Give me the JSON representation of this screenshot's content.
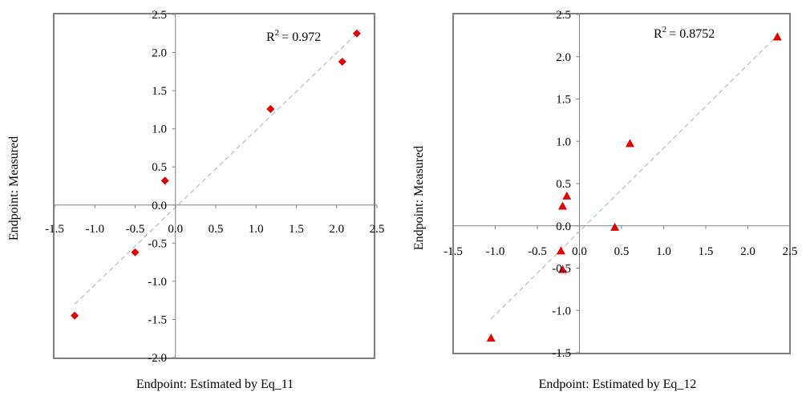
{
  "chart_data": [
    {
      "type": "scatter",
      "marker": "diamond",
      "color": "#e00000",
      "xlabel": "Endpoint: Estimated by Eq_11",
      "ylabel": "Endpoint: Measured",
      "xlim": [
        -1.5,
        2.5
      ],
      "ylim": [
        -2.0,
        2.5
      ],
      "xticks": [
        "-1.5",
        "-1.0",
        "-0.5",
        "0.0",
        "0.5",
        "1.0",
        "1.5",
        "2.0",
        "2.5"
      ],
      "yticks": [
        "-2.0",
        "-1.5",
        "-1.0",
        "-0.5",
        "0.0",
        "0.5",
        "1.0",
        "1.5",
        "2.0",
        "2.5"
      ],
      "r2_label": "= 0.972",
      "r2_base": "R",
      "r2_sup": "2",
      "trendline": {
        "x": [
          -1.25,
          2.3
        ],
        "y": [
          -1.3,
          2.3
        ],
        "style": "dashed"
      },
      "points": [
        {
          "x": -1.25,
          "y": -1.45
        },
        {
          "x": -0.5,
          "y": -0.62
        },
        {
          "x": -0.13,
          "y": 0.32
        },
        {
          "x": 1.18,
          "y": 1.26
        },
        {
          "x": 2.07,
          "y": 1.88
        },
        {
          "x": 2.25,
          "y": 2.25
        }
      ]
    },
    {
      "type": "scatter",
      "marker": "triangle",
      "color": "#e00000",
      "xlabel": "Endpoint: Estimated by Eq_12",
      "ylabel": "Endpoint: Measured",
      "xlim": [
        -1.5,
        2.5
      ],
      "ylim": [
        -1.5,
        2.5
      ],
      "xticks": [
        "-1.5",
        "-1.0",
        "-0.5",
        "0.0",
        "0.5",
        "1.0",
        "1.5",
        "2.0",
        "2.5"
      ],
      "yticks": [
        "-1.5",
        "-1.0",
        "-0.5",
        "0.0",
        "0.5",
        "1.0",
        "1.5",
        "2.0",
        "2.5"
      ],
      "r2_label": "= 0.8752",
      "r2_base": "R",
      "r2_sup": "2",
      "trendline": {
        "x": [
          -1.05,
          2.4
        ],
        "y": [
          -1.1,
          2.3
        ],
        "style": "dashed"
      },
      "points": [
        {
          "x": -1.05,
          "y": -1.33
        },
        {
          "x": -0.22,
          "y": -0.3
        },
        {
          "x": -0.2,
          "y": -0.52
        },
        {
          "x": -0.2,
          "y": 0.23
        },
        {
          "x": -0.15,
          "y": 0.35
        },
        {
          "x": 0.42,
          "y": -0.02
        },
        {
          "x": 0.6,
          "y": 0.97
        },
        {
          "x": 2.35,
          "y": 2.23
        }
      ]
    }
  ]
}
